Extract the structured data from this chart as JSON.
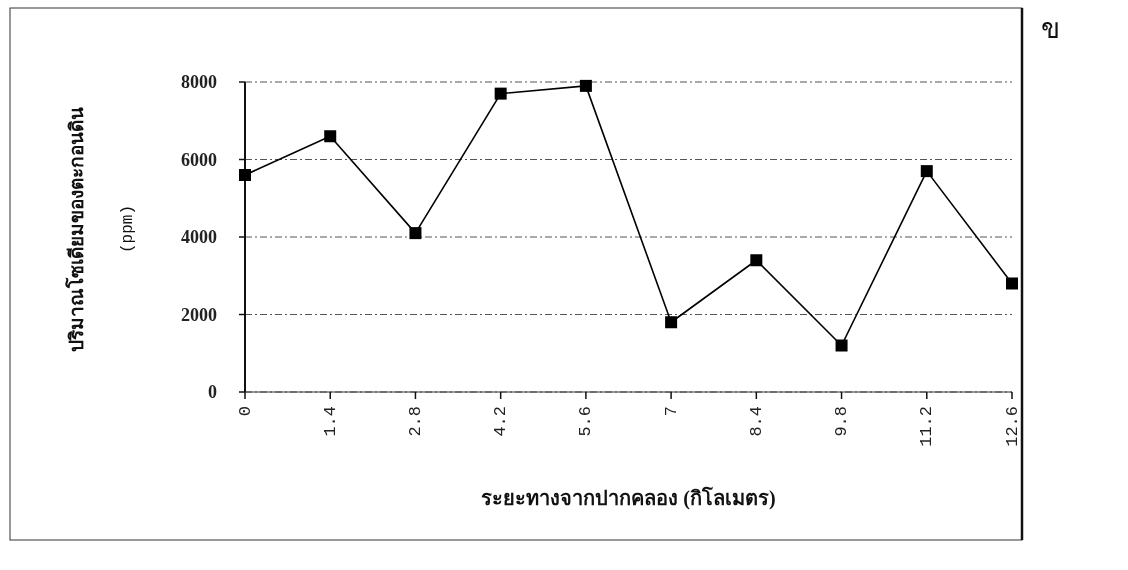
{
  "chart_data": {
    "type": "line",
    "xlabel": "ระยะทางจากปากคลอง (กิโลเมตร)",
    "ylabel": "ปริมาณโซเดียมของตะกอนดิน\n(ppm)",
    "annotations": [
      "ข"
    ],
    "categories": [
      "0",
      "1.4",
      "2.8",
      "4.2",
      "5.6",
      "7",
      "8.4",
      "9.8",
      "11.2",
      "12.6"
    ],
    "series": [
      {
        "color": "#000000",
        "values": [
          5600,
          6600,
          4100,
          7700,
          7900,
          1800,
          3400,
          1200,
          5700,
          2800
        ]
      }
    ],
    "ylim": [
      0,
      8000
    ],
    "yticks": [
      0,
      2000,
      4000,
      6000,
      8000
    ],
    "grid": "y",
    "marker": "square",
    "line_style": "solid"
  }
}
